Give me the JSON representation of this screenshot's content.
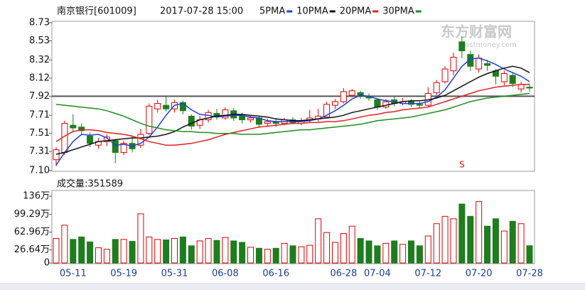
{
  "chart_data": [
    {
      "type": "candlestick",
      "title": "南京银行[601009]",
      "subtitle": "2017-07-28 15:00",
      "open": [
        7.22,
        7.3,
        7.6,
        7.58,
        7.48,
        7.38,
        7.42,
        7.43,
        7.3,
        7.4,
        7.38,
        7.51,
        7.78,
        7.82,
        7.78,
        7.85,
        7.7,
        7.6,
        7.66,
        7.73,
        7.68,
        7.76,
        7.7,
        7.66,
        7.68,
        7.62,
        7.64,
        7.62,
        7.66,
        7.62,
        7.66,
        7.67,
        7.69,
        7.82,
        7.86,
        7.93,
        7.96,
        7.92,
        7.88,
        7.8,
        7.88,
        7.84,
        7.86,
        7.83,
        7.82,
        7.96,
        8.08,
        8.2,
        8.52,
        8.38,
        8.22,
        8.28,
        8.2,
        8.08,
        8.15,
        8.0,
        8.02
      ],
      "high": [
        7.36,
        7.65,
        7.72,
        7.62,
        7.52,
        7.46,
        7.5,
        7.45,
        7.43,
        7.48,
        7.56,
        7.84,
        7.88,
        7.92,
        7.88,
        7.87,
        7.72,
        7.7,
        7.77,
        7.78,
        7.8,
        7.79,
        7.74,
        7.71,
        7.7,
        7.67,
        7.68,
        7.68,
        7.69,
        7.68,
        7.77,
        7.78,
        7.86,
        7.89,
        8.01,
        8.0,
        7.98,
        7.95,
        7.9,
        7.89,
        7.92,
        7.9,
        7.89,
        7.86,
        8.02,
        8.1,
        8.25,
        8.4,
        8.58,
        8.42,
        8.38,
        8.32,
        8.22,
        8.2,
        8.18,
        8.08,
        8.06
      ],
      "low": [
        7.15,
        7.27,
        7.52,
        7.49,
        7.36,
        7.34,
        7.37,
        7.18,
        7.27,
        7.3,
        7.35,
        7.49,
        7.74,
        7.75,
        7.74,
        7.72,
        7.55,
        7.56,
        7.63,
        7.66,
        7.66,
        7.65,
        7.62,
        7.63,
        7.57,
        7.59,
        7.58,
        7.6,
        7.61,
        7.6,
        7.63,
        7.64,
        7.68,
        7.78,
        7.84,
        7.91,
        7.89,
        7.87,
        7.77,
        7.78,
        7.81,
        7.82,
        7.8,
        7.79,
        7.8,
        7.93,
        8.06,
        8.15,
        8.34,
        8.2,
        8.18,
        8.2,
        8.05,
        8.04,
        8.02,
        7.96,
        7.97
      ],
      "close": [
        7.33,
        7.62,
        7.57,
        7.54,
        7.4,
        7.42,
        7.47,
        7.3,
        7.4,
        7.34,
        7.5,
        7.81,
        7.84,
        7.78,
        7.85,
        7.76,
        7.59,
        7.66,
        7.74,
        7.7,
        7.77,
        7.68,
        7.66,
        7.68,
        7.61,
        7.64,
        7.62,
        7.66,
        7.63,
        7.65,
        7.68,
        7.7,
        7.83,
        7.86,
        7.97,
        7.98,
        7.93,
        7.9,
        7.8,
        7.86,
        7.84,
        7.86,
        7.83,
        7.82,
        7.95,
        8.07,
        8.22,
        8.35,
        8.42,
        8.25,
        8.34,
        8.26,
        8.14,
        8.17,
        8.06,
        8.05,
        8.01
      ],
      "up_color": "#e00000",
      "down_color": "#1e7d1e",
      "series": [
        {
          "name": "5PMA",
          "color": "#1f3fd6",
          "values": [
            7.16,
            7.3,
            7.42,
            7.5,
            7.49,
            7.5,
            7.46,
            7.38,
            7.39,
            7.37,
            7.4,
            7.47,
            7.58,
            7.71,
            7.82,
            7.84,
            7.77,
            7.72,
            7.71,
            7.69,
            7.7,
            7.71,
            7.71,
            7.69,
            7.68,
            7.65,
            7.64,
            7.64,
            7.64,
            7.64,
            7.65,
            7.67,
            7.71,
            7.76,
            7.82,
            7.89,
            7.93,
            7.92,
            7.89,
            7.87,
            7.86,
            7.84,
            7.84,
            7.84,
            7.86,
            7.91,
            7.99,
            8.12,
            8.25,
            8.33,
            8.34,
            8.31,
            8.27,
            8.22,
            8.18,
            8.14,
            8.08
          ]
        },
        {
          "name": "10PMA",
          "color": "#111111",
          "values": [
            7.28,
            7.3,
            7.33,
            7.36,
            7.39,
            7.42,
            7.43,
            7.44,
            7.45,
            7.46,
            7.46,
            7.47,
            7.48,
            7.5,
            7.53,
            7.58,
            7.62,
            7.66,
            7.68,
            7.7,
            7.71,
            7.72,
            7.72,
            7.71,
            7.7,
            7.69,
            7.67,
            7.66,
            7.65,
            7.65,
            7.66,
            7.67,
            7.68,
            7.69,
            7.71,
            7.74,
            7.76,
            7.78,
            7.8,
            7.82,
            7.84,
            7.86,
            7.87,
            7.87,
            7.88,
            7.9,
            7.93,
            7.98,
            8.03,
            8.08,
            8.13,
            8.17,
            8.2,
            8.23,
            8.25,
            8.23,
            8.18
          ]
        },
        {
          "name": "20PMA",
          "color": "#e02020",
          "values": [
            7.42,
            7.48,
            7.53,
            7.55,
            7.55,
            7.54,
            7.52,
            7.51,
            7.5,
            7.48,
            7.45,
            7.42,
            7.4,
            7.38,
            7.38,
            7.39,
            7.4,
            7.42,
            7.44,
            7.47,
            7.5,
            7.52,
            7.54,
            7.56,
            7.58,
            7.59,
            7.6,
            7.61,
            7.62,
            7.62,
            7.63,
            7.63,
            7.64,
            7.64,
            7.65,
            7.67,
            7.69,
            7.71,
            7.72,
            7.74,
            7.75,
            7.77,
            7.78,
            7.79,
            7.8,
            7.83,
            7.86,
            7.89,
            7.92,
            7.95,
            7.98,
            8.0,
            8.02,
            8.03,
            8.04,
            8.05,
            8.05
          ]
        },
        {
          "name": "30PMA",
          "color": "#1e8c1e",
          "values": [
            7.83,
            7.82,
            7.81,
            7.8,
            7.79,
            7.78,
            7.76,
            7.73,
            7.7,
            7.66,
            7.62,
            7.59,
            7.57,
            7.55,
            7.54,
            7.53,
            7.53,
            7.52,
            7.52,
            7.51,
            7.51,
            7.51,
            7.5,
            7.5,
            7.5,
            7.51,
            7.52,
            7.53,
            7.54,
            7.55,
            7.55,
            7.56,
            7.57,
            7.58,
            7.59,
            7.6,
            7.61,
            7.63,
            7.65,
            7.66,
            7.67,
            7.68,
            7.69,
            7.71,
            7.73,
            7.75,
            7.77,
            7.8,
            7.83,
            7.86,
            7.88,
            7.9,
            7.91,
            7.92,
            7.93,
            7.94,
            7.95
          ]
        }
      ],
      "ylim": [
        7.1,
        8.73
      ],
      "yticks": [
        {
          "value": 7.1,
          "label": "7.10"
        },
        7.31,
        7.51,
        7.71,
        7.92,
        8.12,
        8.32,
        8.53,
        8.73
      ],
      "reference_line": 7.92,
      "annotation": "S",
      "watermark": "东方财富网",
      "watermark_sub": "eastmoney.com"
    },
    {
      "type": "bar",
      "title": "成交量:351589",
      "categories": [
        null,
        null,
        "05-11",
        null,
        null,
        null,
        null,
        null,
        "05-19",
        null,
        null,
        null,
        null,
        null,
        "05-31",
        null,
        null,
        null,
        null,
        null,
        "06-08",
        null,
        null,
        null,
        null,
        null,
        "06-16",
        null,
        null,
        null,
        null,
        null,
        null,
        null,
        "06-28",
        null,
        null,
        null,
        "07-04",
        null,
        null,
        null,
        null,
        null,
        "07-12",
        null,
        null,
        null,
        null,
        null,
        "07-20",
        null,
        null,
        null,
        null,
        null,
        "07-28"
      ],
      "values": [
        50,
        77,
        48,
        53,
        43,
        31,
        28,
        48,
        48,
        44,
        100,
        53,
        48,
        47,
        50,
        53,
        35,
        45,
        50,
        46,
        52,
        45,
        42,
        32,
        30,
        28,
        30,
        40,
        35,
        33,
        36,
        90,
        62,
        42,
        60,
        75,
        50,
        45,
        35,
        40,
        45,
        38,
        45,
        35,
        55,
        80,
        95,
        90,
        120,
        95,
        125,
        75,
        90,
        65,
        85,
        80,
        35.1589
      ],
      "ylim": [
        0,
        136
      ],
      "yticks": [
        0,
        {
          "value": 26.64,
          "label": "26.64万"
        },
        {
          "value": 62.96,
          "label": "62.96万"
        },
        {
          "value": 99.29,
          "label": "99.29万"
        },
        {
          "value": 136,
          "label": "136万"
        }
      ]
    }
  ]
}
